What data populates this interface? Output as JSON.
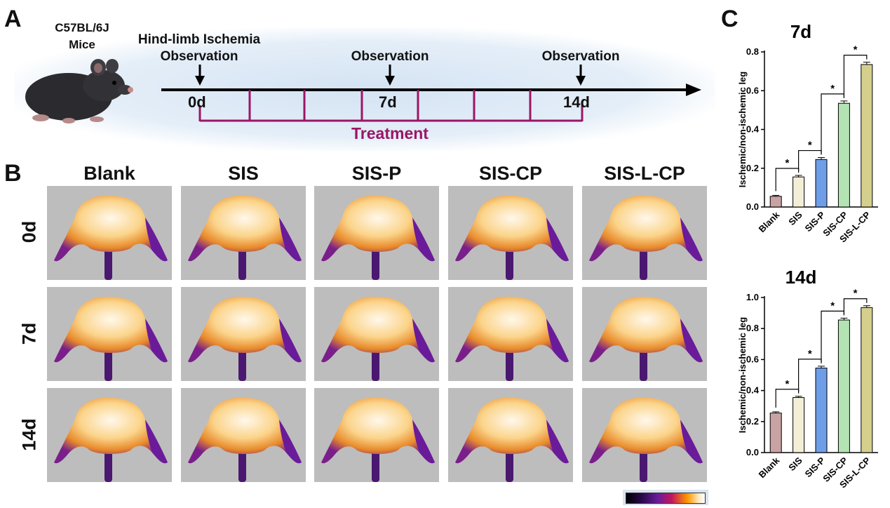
{
  "panels": {
    "a": "A",
    "b": "B",
    "c": "C"
  },
  "timeline": {
    "mouse_label_1": "C57BL/6J",
    "mouse_label_2": "Mice",
    "event_0_line1": "Hind-limb Ischemia",
    "event_0_line2": "Observation",
    "event_7": "Observation",
    "event_14": "Observation",
    "day_0": "0d",
    "day_7": "7d",
    "day_14": "14d",
    "treatment": "Treatment",
    "colors": {
      "arrow": "#000000",
      "treatment": "#9c1567"
    }
  },
  "imaging": {
    "columns": [
      "Blank",
      "SIS",
      "SIS-P",
      "SIS-CP",
      "SIS-L-CP"
    ],
    "rows": [
      "0d",
      "7d",
      "14d"
    ]
  },
  "chart_data": [
    {
      "type": "bar",
      "title": "7d",
      "ylabel": "Ischemic/non-ischemic leg",
      "categories": [
        "Blank",
        "SIS",
        "SIS-P",
        "SIS-CP",
        "SIS-L-CP"
      ],
      "values": [
        0.055,
        0.155,
        0.245,
        0.535,
        0.735
      ],
      "errors": [
        0.005,
        0.008,
        0.01,
        0.012,
        0.012
      ],
      "colors": [
        "#c9a3a3",
        "#f3eed6",
        "#6f9ee8",
        "#b3e3b3",
        "#d5cf8e"
      ],
      "ylim": [
        0,
        0.8
      ],
      "yticks": [
        "0.0",
        "0.2",
        "0.4",
        "0.6",
        "0.8"
      ],
      "significance": [
        "*",
        "*",
        "*",
        "*"
      ]
    },
    {
      "type": "bar",
      "title": "14d",
      "ylabel": "Ischemic/non-ischemic leg",
      "categories": [
        "Blank",
        "SIS",
        "SIS-P",
        "SIS-CP",
        "SIS-L-CP"
      ],
      "values": [
        0.255,
        0.355,
        0.545,
        0.855,
        0.935
      ],
      "errors": [
        0.008,
        0.008,
        0.012,
        0.012,
        0.012
      ],
      "colors": [
        "#c9a3a3",
        "#f3eed6",
        "#6f9ee8",
        "#b3e3b3",
        "#d5cf8e"
      ],
      "ylim": [
        0,
        1.0
      ],
      "yticks": [
        "0.0",
        "0.2",
        "0.4",
        "0.6",
        "0.8",
        "1.0"
      ],
      "significance": [
        "*",
        "*",
        "*",
        "*"
      ]
    }
  ]
}
